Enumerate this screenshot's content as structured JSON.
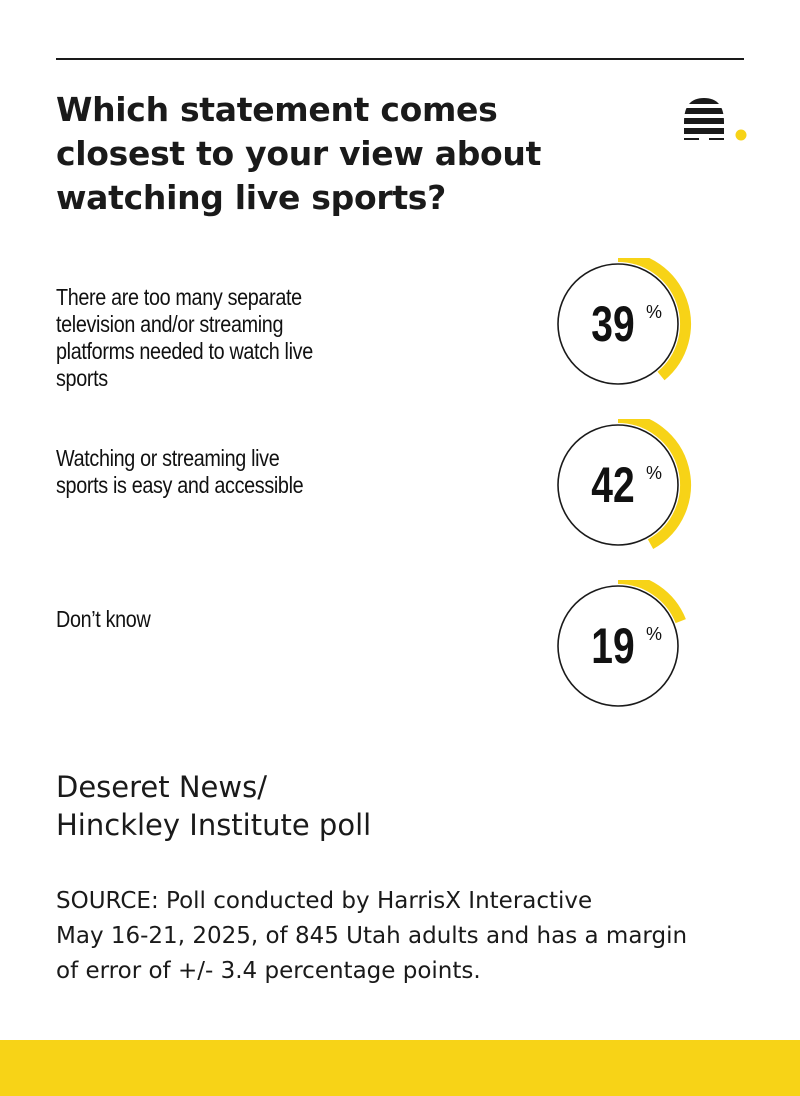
{
  "title": "Which statement comes closest to your view about watching live sports?",
  "logo": {
    "icon": "beehive-icon"
  },
  "chart_data": {
    "type": "donut",
    "title": "Which statement comes closest to your view about watching live sports?",
    "unit": "%",
    "categories": [
      "There are too many separate television and/or streaming platforms needed to watch live sports",
      "Watching or streaming live sports is easy and accessible",
      "Don’t know"
    ],
    "values": [
      39,
      42,
      19
    ],
    "labels": [
      "39",
      "42",
      "19"
    ]
  },
  "attribution": {
    "line1": "Deseret News/",
    "line2": "Hinckley Institute poll"
  },
  "source": {
    "line1": "SOURCE: Poll conducted by HarrisX Interactive",
    "line2": "May 16-21, 2025, of 845 Utah adults and has a margin",
    "line3": "of error of +/- 3.4 percentage points."
  },
  "colors": {
    "accent": "#f7d317",
    "text": "#1a1a1a",
    "background": "#ffffff"
  }
}
